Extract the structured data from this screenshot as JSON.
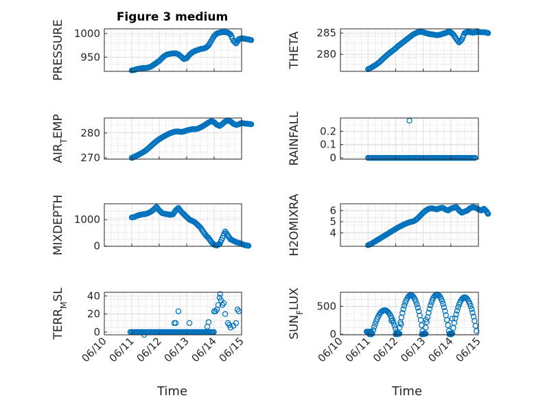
{
  "figure": {
    "title": "Figure 3 medium",
    "xlabel": "Time"
  },
  "colors": {
    "marker": "#0072BD",
    "axis": "#262626",
    "grid": "#d9d9d9",
    "minor_grid": "#b0b0b0",
    "background": "#ffffff"
  },
  "chart_data": [
    {
      "id": "pressure",
      "type": "scatter",
      "ylabel": "PRESSURE",
      "xlim": [
        "06/11",
        "06/14.9"
      ],
      "ylim": [
        920,
        1010
      ],
      "yticks": [
        950,
        1000
      ],
      "x_ticks_shown": false,
      "points": [
        [
          0.0,
          922
        ],
        [
          0.1,
          923
        ],
        [
          0.2,
          925
        ],
        [
          0.3,
          926
        ],
        [
          0.4,
          927
        ],
        [
          0.5,
          927
        ],
        [
          0.6,
          928
        ],
        [
          0.7,
          930
        ],
        [
          0.8,
          934
        ],
        [
          0.9,
          938
        ],
        [
          1.0,
          942
        ],
        [
          1.1,
          948
        ],
        [
          1.2,
          953
        ],
        [
          1.3,
          956
        ],
        [
          1.4,
          957
        ],
        [
          1.5,
          958
        ],
        [
          1.6,
          958
        ],
        [
          1.7,
          956
        ],
        [
          1.8,
          951
        ],
        [
          1.9,
          946
        ],
        [
          2.0,
          948
        ],
        [
          2.1,
          955
        ],
        [
          2.2,
          960
        ],
        [
          2.3,
          963
        ],
        [
          2.4,
          965
        ],
        [
          2.5,
          967
        ],
        [
          2.6,
          968
        ],
        [
          2.7,
          970
        ],
        [
          2.8,
          975
        ],
        [
          2.9,
          985
        ],
        [
          3.0,
          995
        ],
        [
          3.1,
          1000
        ],
        [
          3.2,
          1002
        ],
        [
          3.3,
          1003
        ],
        [
          3.4,
          1003
        ],
        [
          3.5,
          1002
        ],
        [
          3.6,
          998
        ],
        [
          3.7,
          985
        ],
        [
          3.8,
          979
        ],
        [
          3.9,
          988
        ],
        [
          4.0,
          990
        ],
        [
          4.1,
          989
        ],
        [
          4.2,
          988
        ],
        [
          4.3,
          987
        ],
        [
          4.35,
          986
        ]
      ]
    },
    {
      "id": "theta",
      "type": "scatter",
      "ylabel": "THETA",
      "xlim": [
        "06/11",
        "06/14.9"
      ],
      "ylim": [
        276,
        286
      ],
      "yticks": [
        280,
        285
      ],
      "x_ticks_shown": false,
      "points": [
        [
          0.0,
          276.5
        ],
        [
          0.1,
          276.8
        ],
        [
          0.2,
          277.2
        ],
        [
          0.3,
          277.6
        ],
        [
          0.4,
          278.1
        ],
        [
          0.5,
          278.7
        ],
        [
          0.6,
          279.3
        ],
        [
          0.7,
          279.9
        ],
        [
          0.8,
          280.4
        ],
        [
          0.9,
          280.9
        ],
        [
          1.0,
          281.4
        ],
        [
          1.1,
          282.0
        ],
        [
          1.2,
          282.5
        ],
        [
          1.3,
          283.0
        ],
        [
          1.4,
          283.5
        ],
        [
          1.5,
          284.0
        ],
        [
          1.6,
          284.5
        ],
        [
          1.7,
          284.9
        ],
        [
          1.8,
          285.2
        ],
        [
          1.9,
          285.3
        ],
        [
          2.0,
          285.2
        ],
        [
          2.1,
          285.0
        ],
        [
          2.2,
          284.8
        ],
        [
          2.3,
          284.7
        ],
        [
          2.4,
          284.6
        ],
        [
          2.5,
          284.5
        ],
        [
          2.6,
          284.6
        ],
        [
          2.7,
          284.8
        ],
        [
          2.8,
          285.0
        ],
        [
          2.9,
          285.3
        ],
        [
          3.0,
          285.2
        ],
        [
          3.1,
          284.6
        ],
        [
          3.2,
          283.6
        ],
        [
          3.3,
          282.8
        ],
        [
          3.4,
          283.5
        ],
        [
          3.5,
          285.0
        ],
        [
          3.6,
          285.3
        ],
        [
          3.7,
          285.2
        ],
        [
          3.8,
          285.1
        ],
        [
          3.9,
          285.2
        ],
        [
          4.0,
          285.3
        ],
        [
          4.1,
          285.2
        ],
        [
          4.2,
          285.2
        ],
        [
          4.3,
          285.1
        ],
        [
          4.35,
          285.0
        ]
      ]
    },
    {
      "id": "air_temp",
      "type": "scatter",
      "ylabel": "AIR_TEMP",
      "ylabel_main": "AIR",
      "ylabel_sub": "T",
      "ylabel_rest": "EMP",
      "xlim": [
        "06/11",
        "06/14.9"
      ],
      "ylim": [
        269.5,
        286
      ],
      "yticks": [
        270,
        280
      ],
      "x_ticks_shown": false,
      "points": [
        [
          0.0,
          270.0
        ],
        [
          0.1,
          270.5
        ],
        [
          0.2,
          271.0
        ],
        [
          0.3,
          271.6
        ],
        [
          0.4,
          272.2
        ],
        [
          0.5,
          272.9
        ],
        [
          0.6,
          273.8
        ],
        [
          0.7,
          274.8
        ],
        [
          0.8,
          275.8
        ],
        [
          0.9,
          276.7
        ],
        [
          1.0,
          277.5
        ],
        [
          1.1,
          278.2
        ],
        [
          1.2,
          278.8
        ],
        [
          1.3,
          279.4
        ],
        [
          1.4,
          279.9
        ],
        [
          1.5,
          280.3
        ],
        [
          1.6,
          280.6
        ],
        [
          1.7,
          280.6
        ],
        [
          1.8,
          280.4
        ],
        [
          1.9,
          280.6
        ],
        [
          2.0,
          281.0
        ],
        [
          2.1,
          281.3
        ],
        [
          2.2,
          281.5
        ],
        [
          2.3,
          281.5
        ],
        [
          2.4,
          281.7
        ],
        [
          2.5,
          282.2
        ],
        [
          2.6,
          282.8
        ],
        [
          2.7,
          283.5
        ],
        [
          2.8,
          284.2
        ],
        [
          2.9,
          284.8
        ],
        [
          3.0,
          284.3
        ],
        [
          3.1,
          283.3
        ],
        [
          3.2,
          282.8
        ],
        [
          3.3,
          283.6
        ],
        [
          3.4,
          284.6
        ],
        [
          3.5,
          285.0
        ],
        [
          3.6,
          284.6
        ],
        [
          3.7,
          283.7
        ],
        [
          3.8,
          283.2
        ],
        [
          3.9,
          283.5
        ],
        [
          4.0,
          284.0
        ],
        [
          4.1,
          283.8
        ],
        [
          4.2,
          283.7
        ],
        [
          4.3,
          283.6
        ],
        [
          4.35,
          283.5
        ]
      ]
    },
    {
      "id": "rainfall",
      "type": "scatter",
      "ylabel": "RAINFALL",
      "xlim": [
        "06/11",
        "06/14.9"
      ],
      "ylim": [
        -0.01,
        0.3
      ],
      "yticks": [
        0,
        0.1,
        0.2
      ],
      "ytick_labels": [
        "0",
        "0.1",
        "0.2"
      ],
      "x_ticks_shown": false,
      "baseline": 0,
      "spike": [
        1.5,
        0.28
      ]
    },
    {
      "id": "mixdepth",
      "type": "scatter",
      "ylabel": "MIXDEPTH",
      "xlim": [
        "06/11",
        "06/14.9"
      ],
      "ylim": [
        -10,
        1600
      ],
      "yticks": [
        0,
        1000
      ],
      "x_ticks_shown": false,
      "points": [
        [
          0.0,
          1080
        ],
        [
          0.1,
          1100
        ],
        [
          0.2,
          1150
        ],
        [
          0.3,
          1180
        ],
        [
          0.4,
          1200
        ],
        [
          0.5,
          1210
        ],
        [
          0.6,
          1250
        ],
        [
          0.7,
          1300
        ],
        [
          0.8,
          1380
        ],
        [
          0.9,
          1480
        ],
        [
          1.0,
          1350
        ],
        [
          1.1,
          1250
        ],
        [
          1.2,
          1220
        ],
        [
          1.3,
          1200
        ],
        [
          1.4,
          1180
        ],
        [
          1.5,
          1200
        ],
        [
          1.6,
          1350
        ],
        [
          1.7,
          1440
        ],
        [
          1.8,
          1300
        ],
        [
          1.9,
          1200
        ],
        [
          2.0,
          1100
        ],
        [
          2.1,
          1000
        ],
        [
          2.2,
          950
        ],
        [
          2.3,
          900
        ],
        [
          2.4,
          800
        ],
        [
          2.5,
          700
        ],
        [
          2.6,
          550
        ],
        [
          2.7,
          400
        ],
        [
          2.8,
          300
        ],
        [
          2.9,
          150
        ],
        [
          3.0,
          50
        ],
        [
          3.1,
          20
        ],
        [
          3.2,
          80
        ],
        [
          3.3,
          300
        ],
        [
          3.4,
          550
        ],
        [
          3.5,
          400
        ],
        [
          3.6,
          250
        ],
        [
          3.7,
          200
        ],
        [
          3.8,
          150
        ],
        [
          3.9,
          120
        ],
        [
          4.0,
          80
        ],
        [
          4.1,
          40
        ],
        [
          4.2,
          20
        ],
        [
          4.25,
          10
        ]
      ]
    },
    {
      "id": "h2omixra",
      "type": "scatter",
      "ylabel": "H2OMIXRA",
      "xlim": [
        "06/11",
        "06/14.9"
      ],
      "ylim": [
        2.8,
        6.6
      ],
      "yticks": [
        4,
        5,
        6
      ],
      "x_ticks_shown": false,
      "points": [
        [
          0.0,
          2.9
        ],
        [
          0.1,
          3.0
        ],
        [
          0.2,
          3.15
        ],
        [
          0.3,
          3.3
        ],
        [
          0.4,
          3.45
        ],
        [
          0.5,
          3.6
        ],
        [
          0.6,
          3.75
        ],
        [
          0.7,
          3.9
        ],
        [
          0.8,
          4.05
        ],
        [
          0.9,
          4.2
        ],
        [
          1.0,
          4.35
        ],
        [
          1.1,
          4.5
        ],
        [
          1.2,
          4.62
        ],
        [
          1.3,
          4.75
        ],
        [
          1.4,
          4.85
        ],
        [
          1.5,
          4.95
        ],
        [
          1.6,
          5.0
        ],
        [
          1.7,
          5.1
        ],
        [
          1.8,
          5.3
        ],
        [
          1.9,
          5.55
        ],
        [
          2.0,
          5.8
        ],
        [
          2.1,
          6.0
        ],
        [
          2.2,
          6.15
        ],
        [
          2.3,
          6.2
        ],
        [
          2.4,
          6.15
        ],
        [
          2.5,
          6.1
        ],
        [
          2.6,
          6.2
        ],
        [
          2.7,
          6.25
        ],
        [
          2.8,
          6.1
        ],
        [
          2.9,
          6.0
        ],
        [
          3.0,
          6.15
        ],
        [
          3.1,
          6.25
        ],
        [
          3.2,
          6.3
        ],
        [
          3.3,
          6.0
        ],
        [
          3.4,
          5.8
        ],
        [
          3.5,
          5.9
        ],
        [
          3.6,
          6.0
        ],
        [
          3.7,
          6.2
        ],
        [
          3.8,
          6.3
        ],
        [
          3.9,
          6.25
        ],
        [
          4.0,
          6.1
        ],
        [
          4.1,
          6.0
        ],
        [
          4.2,
          6.15
        ],
        [
          4.3,
          5.9
        ],
        [
          4.35,
          5.7
        ]
      ]
    },
    {
      "id": "terr_msl",
      "type": "scatter",
      "ylabel": "TERR_MSL",
      "ylabel_main": "TERR",
      "ylabel_sub": "M",
      "ylabel_rest": "SL",
      "xlim": [
        "06/10",
        "06/15"
      ],
      "ylim": [
        -3,
        44
      ],
      "yticks": [
        0,
        20,
        40
      ],
      "xticks": [
        "06/10",
        "06/11",
        "06/12",
        "06/13",
        "06/14",
        "06/15"
      ],
      "x_ticks_shown": true,
      "baseline": 0,
      "baseline_range": [
        0.9,
        3.5
      ],
      "extra_points": [
        [
          1.45,
          -3
        ],
        [
          2.55,
          10
        ],
        [
          2.6,
          10
        ],
        [
          2.7,
          23
        ],
        [
          3.1,
          10
        ],
        [
          3.75,
          6
        ],
        [
          3.8,
          11
        ],
        [
          4.0,
          23
        ],
        [
          4.05,
          23
        ],
        [
          4.1,
          25
        ],
        [
          4.15,
          30
        ],
        [
          4.2,
          38
        ],
        [
          4.22,
          42
        ],
        [
          4.25,
          35
        ],
        [
          4.3,
          30
        ],
        [
          4.35,
          32
        ],
        [
          4.4,
          20
        ],
        [
          4.5,
          10
        ],
        [
          4.55,
          8
        ],
        [
          4.6,
          5
        ],
        [
          4.7,
          7
        ],
        [
          4.8,
          10
        ],
        [
          4.85,
          25
        ],
        [
          4.9,
          23
        ]
      ]
    },
    {
      "id": "sun_flux",
      "type": "scatter",
      "ylabel": "SUN_FLUX",
      "ylabel_main": "SUN",
      "ylabel_sub": "F",
      "ylabel_rest": "LUX",
      "xlim": [
        "06/10",
        "06/15"
      ],
      "ylim": [
        -10,
        750
      ],
      "yticks": [
        0,
        500
      ],
      "xticks": [
        "06/10",
        "06/11",
        "06/12",
        "06/13",
        "06/14",
        "06/15"
      ],
      "x_ticks_shown": true,
      "peaks": [
        [
          1.6,
          430
        ],
        [
          2.55,
          700
        ],
        [
          3.5,
          710
        ],
        [
          4.5,
          660
        ]
      ],
      "outliers": [
        [
          1.85,
          240
        ],
        [
          2.2,
          180
        ],
        [
          3.1,
          260
        ],
        [
          4.05,
          280
        ]
      ]
    }
  ]
}
